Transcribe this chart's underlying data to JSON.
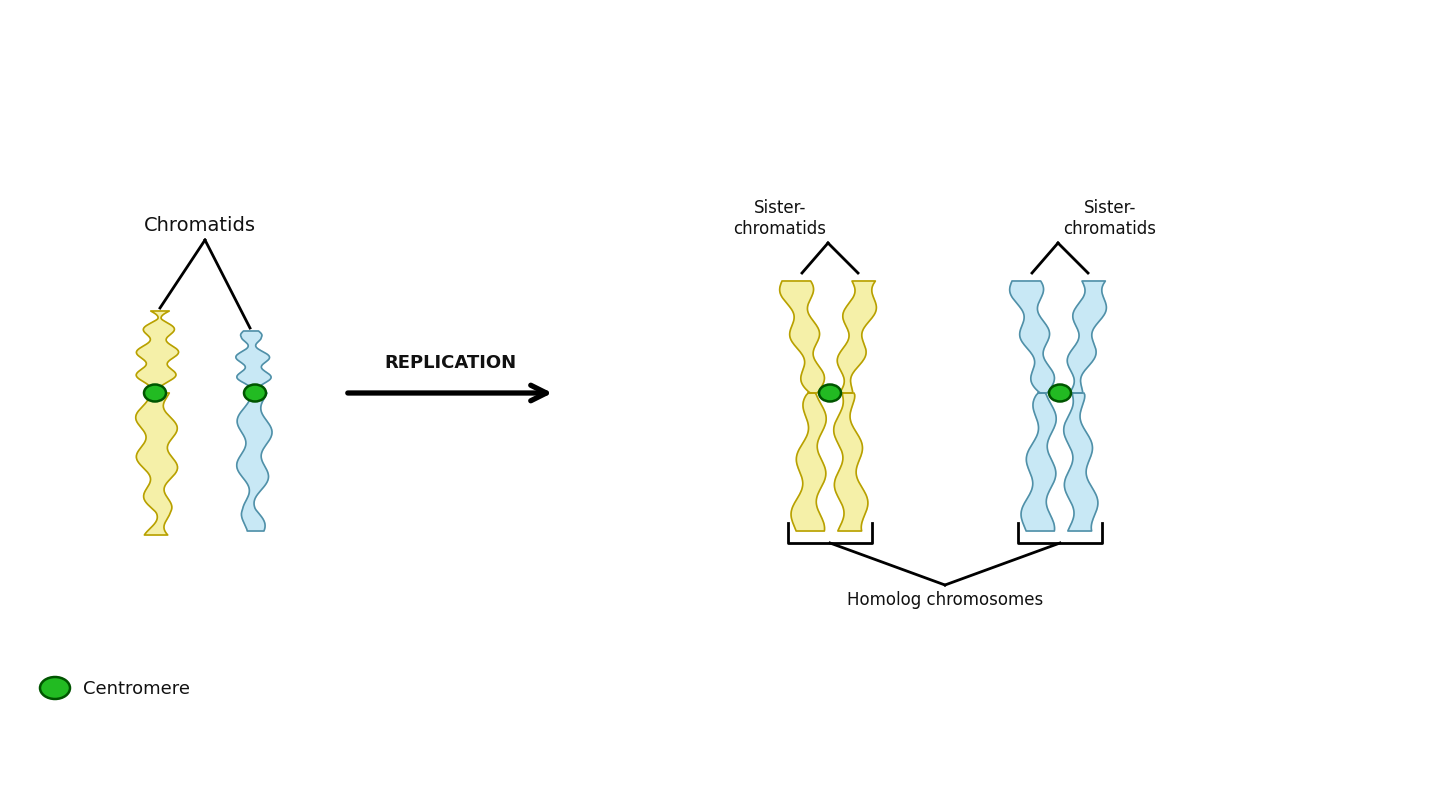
{
  "bg_color": "#ffffff",
  "yellow_fill": "#f5f0a8",
  "yellow_border": "#b8a000",
  "blue_fill": "#c8e8f5",
  "blue_border": "#5090a8",
  "centromere_fill": "#22bb22",
  "centromere_border": "#005500",
  "text_color": "#111111",
  "title_chromatids": "Chromatids",
  "title_sister1": "Sister-\nchromatids",
  "title_sister2": "Sister-\nchromatids",
  "label_replication": "REPLICATION",
  "label_homolog": "Homolog chromosomes",
  "label_centromere": "Centromere",
  "fig_width": 14.4,
  "fig_height": 8.04,
  "dpi": 100
}
